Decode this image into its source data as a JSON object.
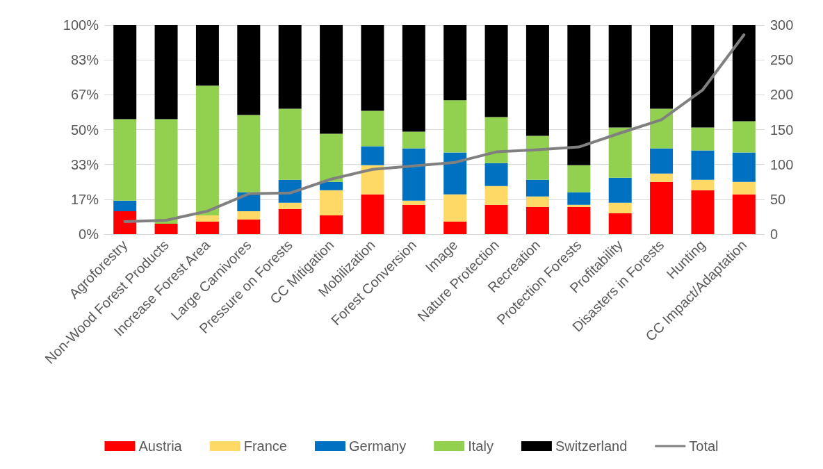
{
  "chart_data": {
    "type": "bar",
    "stacked": true,
    "categories": [
      "Agroforestry",
      "Non-Wood Forest Products",
      "Increase Forest Area",
      "Large Carnivores",
      "Pressure on Forests",
      "CC Mitigation",
      "Mobilization",
      "Forest Conversion",
      "Image",
      "Nature Protection",
      "Recreation",
      "Protection Forests",
      "Profitability",
      "Disasters in Forests",
      "Hunting",
      "CC Impact/Adaptation"
    ],
    "series": [
      {
        "name": "Austria",
        "color": "#ff0000",
        "values": [
          11,
          5,
          6,
          7,
          12,
          9,
          19,
          14,
          6,
          14,
          13,
          13,
          10,
          25,
          21,
          19
        ]
      },
      {
        "name": "France",
        "color": "#ffd966",
        "values": [
          0,
          0,
          3,
          4,
          3,
          12,
          14,
          2,
          13,
          9,
          5,
          1,
          5,
          4,
          5,
          6
        ]
      },
      {
        "name": "Germany",
        "color": "#0070c0",
        "values": [
          5,
          0,
          0,
          9,
          11,
          4,
          9,
          25,
          20,
          11,
          8,
          6,
          12,
          12,
          14,
          14
        ]
      },
      {
        "name": "Italy",
        "color": "#92d050",
        "values": [
          39,
          50,
          62,
          37,
          34,
          23,
          17,
          8,
          25,
          22,
          21,
          13,
          24,
          19,
          11,
          15
        ]
      },
      {
        "name": "Switzerland",
        "color": "#000000",
        "values": [
          45,
          45,
          29,
          43,
          40,
          52,
          41,
          51,
          36,
          44,
          53,
          67,
          49,
          40,
          49,
          46
        ]
      },
      {
        "name": "Total",
        "type": "line",
        "axis": "y2",
        "color": "#808080",
        "values": [
          18,
          20,
          33,
          58,
          59,
          79,
          93,
          98,
          103,
          118,
          121,
          125,
          145,
          164,
          207,
          286
        ]
      }
    ],
    "ylim": [
      0,
      100
    ],
    "yticks": [
      {
        "value": 0,
        "label": "0%"
      },
      {
        "value": 16.667,
        "label": "17%"
      },
      {
        "value": 33.333,
        "label": "33%"
      },
      {
        "value": 50,
        "label": "50%"
      },
      {
        "value": 66.667,
        "label": "67%"
      },
      {
        "value": 83.333,
        "label": "83%"
      },
      {
        "value": 100,
        "label": "100%"
      }
    ],
    "y2lim": [
      0,
      300
    ],
    "y2ticks": [
      0,
      50,
      100,
      150,
      200,
      250,
      300
    ],
    "grid": "y",
    "legend": "bottom",
    "marker": "none",
    "line_style": "solid"
  }
}
